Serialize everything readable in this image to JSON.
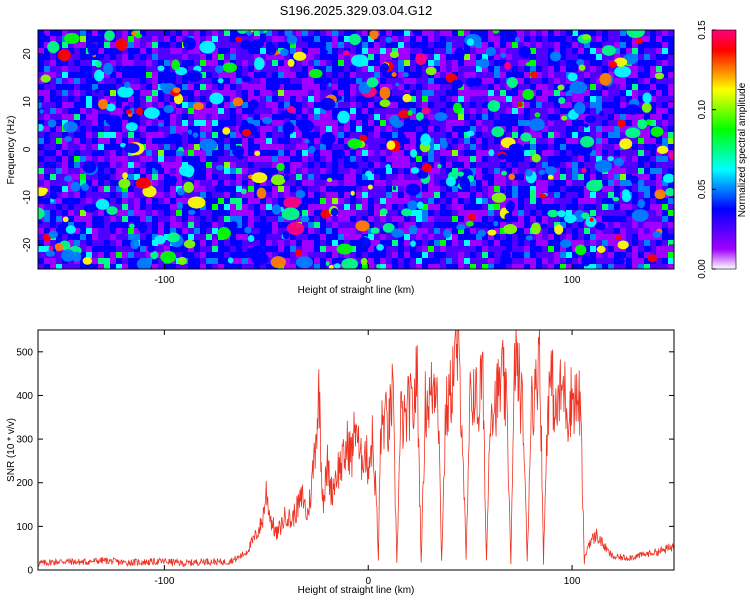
{
  "title": "S196.2025.329.03.04.G12",
  "chart_data": [
    {
      "type": "heatmap",
      "title": "S196.2025.329.03.04.G12",
      "xlabel": "Height of straight line (km)",
      "ylabel": "Frequency (Hz)",
      "xlim": [
        -162,
        150
      ],
      "ylim": [
        -25,
        25
      ],
      "x_ticks": [
        "-100",
        "0",
        "100"
      ],
      "y_ticks": [
        "20",
        "10",
        "0",
        "-10",
        "-20"
      ],
      "colorbar": {
        "label": "Normalized spectral amplitude",
        "range": [
          0,
          0.15
        ],
        "ticks": [
          "0.00",
          "0.05",
          "0.10",
          "0.15"
        ],
        "colors": [
          "#ffffff",
          "#a000ff",
          "#5000ff",
          "#0000ff",
          "#0080ff",
          "#00ffff",
          "#00ff80",
          "#00ff00",
          "#80ff00",
          "#ffff00",
          "#ff8000",
          "#ff0000",
          "#ff0080"
        ]
      },
      "noise_level": 0.03,
      "peak_value": 0.15
    },
    {
      "type": "line",
      "xlabel": "Height of straight line (km)",
      "ylabel": "SNR (10 * v/v)",
      "xlim": [
        -162,
        150
      ],
      "ylim": [
        0,
        550
      ],
      "x_ticks": [
        "-100",
        "0",
        "100"
      ],
      "y_ticks": [
        "0",
        "100",
        "200",
        "300",
        "400",
        "500"
      ],
      "color": "#ee3322",
      "series": [
        {
          "name": "SNR",
          "x": [
            -162,
            -150,
            -140,
            -130,
            -120,
            -110,
            -100,
            -90,
            -80,
            -70,
            -65,
            -60,
            -58,
            -55,
            -52,
            -50,
            -48,
            -45,
            -42,
            -40,
            -38,
            -35,
            -32,
            -30,
            -28,
            -25,
            -24,
            -23,
            -22,
            -21,
            -20,
            -18,
            -15,
            -12,
            -10,
            -8,
            -6,
            -4,
            -2,
            0,
            2,
            4,
            5,
            6,
            8,
            10,
            12,
            14,
            16,
            18,
            20,
            22,
            24,
            26,
            28,
            30,
            32,
            34,
            36,
            38,
            40,
            42,
            44,
            46,
            48,
            50,
            52,
            54,
            56,
            58,
            60,
            62,
            64,
            66,
            68,
            70,
            72,
            74,
            76,
            78,
            80,
            82,
            84,
            86,
            88,
            90,
            92,
            94,
            96,
            98,
            100,
            102,
            104,
            106,
            108,
            110,
            112,
            115,
            118,
            120,
            125,
            130,
            135,
            140,
            145,
            150
          ],
          "y": [
            15,
            20,
            18,
            22,
            17,
            18,
            20,
            15,
            20,
            18,
            25,
            40,
            55,
            80,
            110,
            180,
            120,
            80,
            110,
            130,
            110,
            140,
            170,
            120,
            180,
            350,
            410,
            240,
            160,
            200,
            240,
            180,
            230,
            250,
            290,
            260,
            350,
            240,
            280,
            240,
            300,
            160,
            20,
            310,
            350,
            320,
            410,
            20,
            350,
            330,
            380,
            360,
            450,
            20,
            380,
            390,
            420,
            460,
            20,
            360,
            390,
            470,
            500,
            350,
            20,
            380,
            420,
            360,
            470,
            20,
            390,
            380,
            410,
            440,
            360,
            20,
            500,
            430,
            350,
            20,
            400,
            390,
            540,
            20,
            380,
            440,
            350,
            400,
            420,
            360,
            400,
            390,
            380,
            20,
            60,
            70,
            80,
            60,
            40,
            30,
            28,
            30,
            35,
            40,
            45,
            55
          ]
        }
      ]
    }
  ]
}
